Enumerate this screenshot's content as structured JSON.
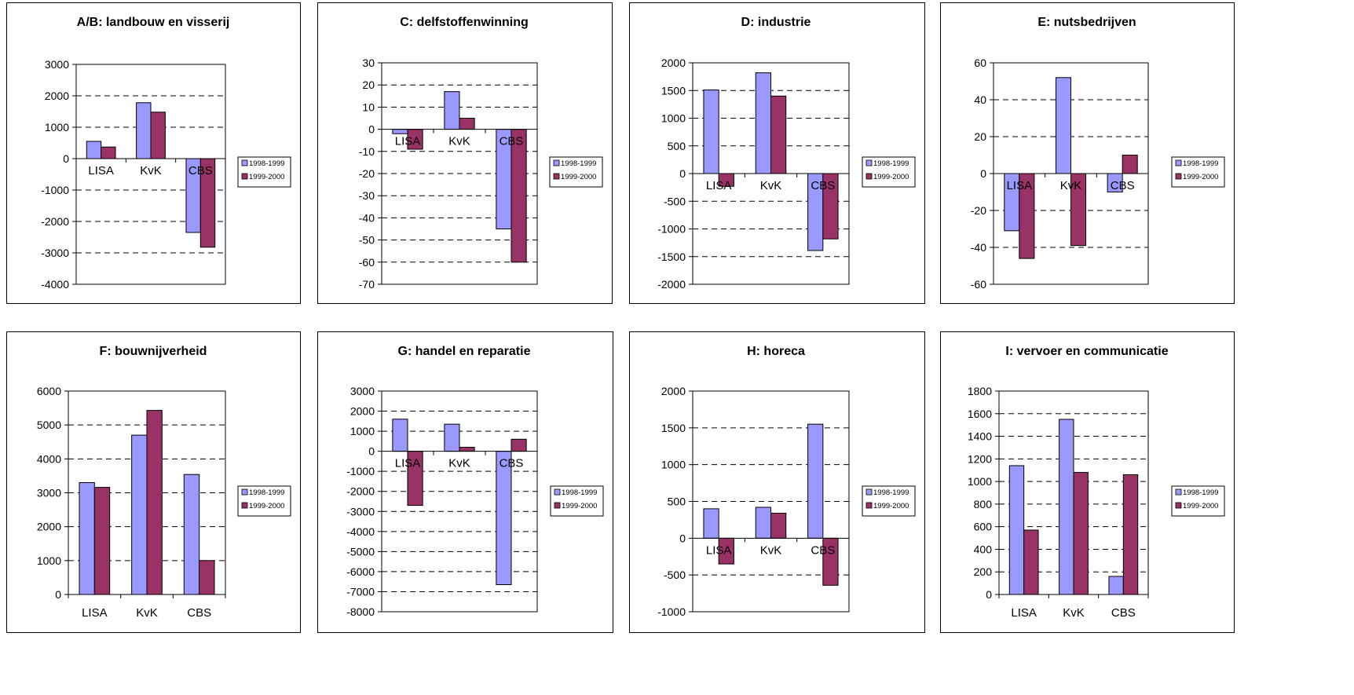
{
  "colors": {
    "series1": "#9999ff",
    "series2": "#993366",
    "grid": "#000000"
  },
  "legend": {
    "placement": "right"
  },
  "chart_data": [
    {
      "type": "bar",
      "title": "A/B: landbouw en visserij",
      "categories": [
        "LISA",
        "KvK",
        "CBS"
      ],
      "series": [
        {
          "name": "1998-1999",
          "values": [
            550,
            1780,
            -2350
          ]
        },
        {
          "name": "1999-2000",
          "values": [
            370,
            1480,
            -2820
          ]
        }
      ],
      "ylim": [
        -4000,
        3000
      ],
      "yticks": [
        3000,
        2000,
        1000,
        0,
        -1000,
        -2000,
        -3000,
        -4000
      ],
      "category_label_position": "at-zero"
    },
    {
      "type": "bar",
      "title": "C: delfstoffenwinning",
      "categories": [
        "LISA",
        "KvK",
        "CBS"
      ],
      "series": [
        {
          "name": "1998-1999",
          "values": [
            -2,
            17,
            -45
          ]
        },
        {
          "name": "1999-2000",
          "values": [
            -9,
            5,
            -60
          ]
        }
      ],
      "ylim": [
        -70,
        30
      ],
      "yticks": [
        30,
        20,
        10,
        0,
        -10,
        -20,
        -30,
        -40,
        -50,
        -60,
        -70
      ],
      "category_label_position": "at-zero"
    },
    {
      "type": "bar",
      "title": "D: industrie",
      "categories": [
        "LISA",
        "KvK",
        "CBS"
      ],
      "series": [
        {
          "name": "1998-1999",
          "values": [
            1510,
            1820,
            -1390
          ]
        },
        {
          "name": "1999-2000",
          "values": [
            -230,
            1400,
            -1180
          ]
        }
      ],
      "ylim": [
        -2000,
        2000
      ],
      "yticks": [
        2000,
        1500,
        1000,
        500,
        0,
        -500,
        -1000,
        -1500,
        -2000
      ],
      "category_label_position": "at-zero"
    },
    {
      "type": "bar",
      "title": "E: nutsbedrijven",
      "categories": [
        "LISA",
        "KvK",
        "CBS"
      ],
      "series": [
        {
          "name": "1998-1999",
          "values": [
            -31,
            52,
            -10
          ]
        },
        {
          "name": "1999-2000",
          "values": [
            -46,
            -39,
            10
          ]
        }
      ],
      "ylim": [
        -60,
        60
      ],
      "yticks": [
        60,
        40,
        20,
        0,
        -20,
        -40,
        -60
      ],
      "category_label_position": "at-zero"
    },
    {
      "type": "bar",
      "title": "F: bouwnijverheid",
      "categories": [
        "LISA",
        "KvK",
        "CBS"
      ],
      "series": [
        {
          "name": "1998-1999",
          "values": [
            3300,
            4700,
            3540
          ]
        },
        {
          "name": "1999-2000",
          "values": [
            3160,
            5430,
            1000
          ]
        }
      ],
      "ylim": [
        0,
        6000
      ],
      "yticks": [
        6000,
        5000,
        4000,
        3000,
        2000,
        1000,
        0
      ],
      "category_label_position": "bottom"
    },
    {
      "type": "bar",
      "title": "G: handel en reparatie",
      "categories": [
        "LISA",
        "KvK",
        "CBS"
      ],
      "series": [
        {
          "name": "1998-1999",
          "values": [
            1600,
            1350,
            -6650
          ]
        },
        {
          "name": "1999-2000",
          "values": [
            -2700,
            200,
            600
          ]
        }
      ],
      "ylim": [
        -8000,
        3000
      ],
      "yticks": [
        3000,
        2000,
        1000,
        0,
        -1000,
        -2000,
        -3000,
        -4000,
        -5000,
        -6000,
        -7000,
        -8000
      ],
      "category_label_position": "at-zero"
    },
    {
      "type": "bar",
      "title": "H: horeca",
      "categories": [
        "LISA",
        "KvK",
        "CBS"
      ],
      "series": [
        {
          "name": "1998-1999",
          "values": [
            400,
            420,
            1550
          ]
        },
        {
          "name": "1999-2000",
          "values": [
            -350,
            340,
            -640
          ]
        }
      ],
      "ylim": [
        -1000,
        2000
      ],
      "yticks": [
        2000,
        1500,
        1000,
        500,
        0,
        -500,
        -1000
      ],
      "category_label_position": "at-zero"
    },
    {
      "type": "bar",
      "title": "I: vervoer en communicatie",
      "categories": [
        "LISA",
        "KvK",
        "CBS"
      ],
      "series": [
        {
          "name": "1998-1999",
          "values": [
            1140,
            1550,
            160
          ]
        },
        {
          "name": "1999-2000",
          "values": [
            570,
            1080,
            1060
          ]
        }
      ],
      "ylim": [
        0,
        1800
      ],
      "yticks": [
        1800,
        1600,
        1400,
        1200,
        1000,
        800,
        600,
        400,
        200,
        0
      ],
      "category_label_position": "bottom"
    }
  ]
}
